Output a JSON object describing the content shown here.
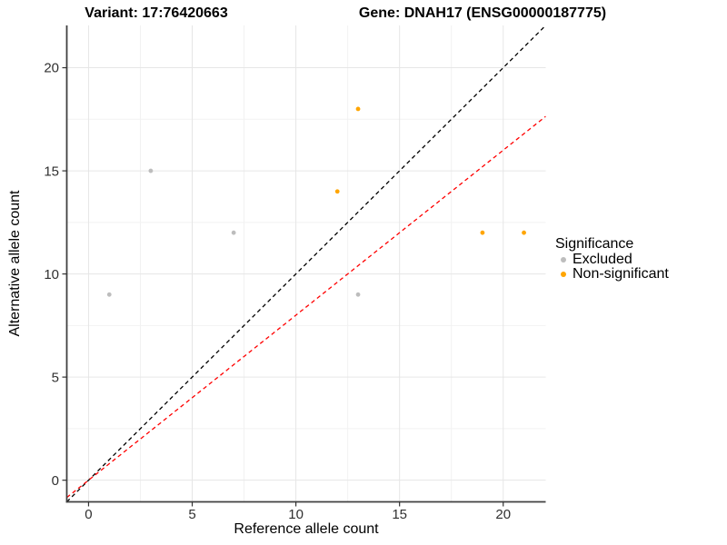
{
  "chart_data": {
    "type": "scatter",
    "title_left": "Variant: 17:76420663",
    "title_right": "Gene: DNAH17 (ENSG00000187775)",
    "xlabel": "Reference allele count",
    "ylabel": "Alternative allele count",
    "xlim": [
      -1.05,
      22.05
    ],
    "ylim": [
      -1.05,
      22.05
    ],
    "x_ticks": [
      0,
      5,
      10,
      15,
      20
    ],
    "y_ticks": [
      0,
      5,
      10,
      15,
      20
    ],
    "x_minor_ticks": [
      2.5,
      7.5,
      12.5,
      17.5
    ],
    "y_minor_ticks": [
      2.5,
      7.5,
      12.5,
      17.5
    ],
    "grid": "major-and-minor",
    "legend_position": "right",
    "legend": {
      "title": "Significance",
      "entries": [
        {
          "label": "Excluded",
          "color": "#BDBDBD"
        },
        {
          "label": "Non-significant",
          "color": "#FFA500"
        }
      ]
    },
    "series": [
      {
        "name": "Excluded",
        "color": "#BDBDBD",
        "points": [
          [
            1,
            9
          ],
          [
            3,
            15
          ],
          [
            7,
            12
          ],
          [
            13,
            9
          ]
        ]
      },
      {
        "name": "Non-significant",
        "color": "#FFA500",
        "points": [
          [
            12,
            14
          ],
          [
            13,
            18
          ],
          [
            19,
            12
          ],
          [
            21,
            12
          ]
        ]
      }
    ],
    "ablines": [
      {
        "name": "identity-line",
        "slope": 1,
        "intercept": 0,
        "color": "#000000",
        "dashed": true
      },
      {
        "name": "allelic-ratio-line",
        "slope": 0.8,
        "intercept": 0,
        "color": "#FF0000",
        "dashed": true
      }
    ],
    "colors": {
      "grid_major": "#E6E6E6",
      "grid_minor": "#F2F2F2",
      "axis_line": "#404040",
      "tick_mark": "#333333",
      "tick_label": "#303030"
    }
  }
}
